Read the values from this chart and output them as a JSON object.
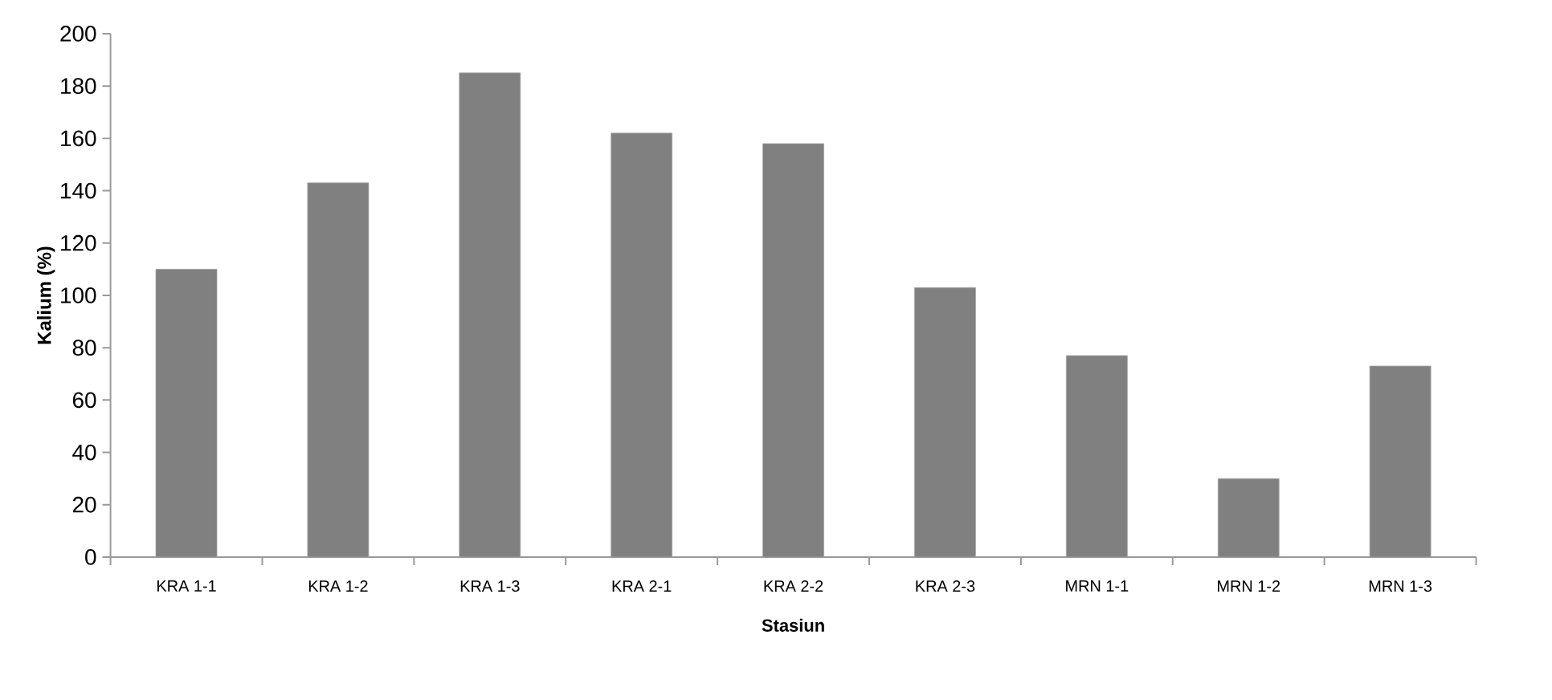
{
  "chart_data": {
    "type": "bar",
    "xlabel": "Stasiun",
    "ylabel": "Kalium (%)",
    "categories": [
      "KRA 1-1",
      "KRA 1-2",
      "KRA 1-3",
      "KRA 2-1",
      "KRA 2-2",
      "KRA 2-3",
      "MRN 1-1",
      "MRN 1-2",
      "MRN 1-3"
    ],
    "values": [
      110,
      143,
      185,
      162,
      158,
      103,
      77,
      30,
      73
    ],
    "color": "#808080",
    "ylim": [
      0,
      200
    ],
    "yticks": [
      0,
      20,
      40,
      60,
      80,
      100,
      120,
      140,
      160,
      180,
      200
    ],
    "grid": false
  }
}
